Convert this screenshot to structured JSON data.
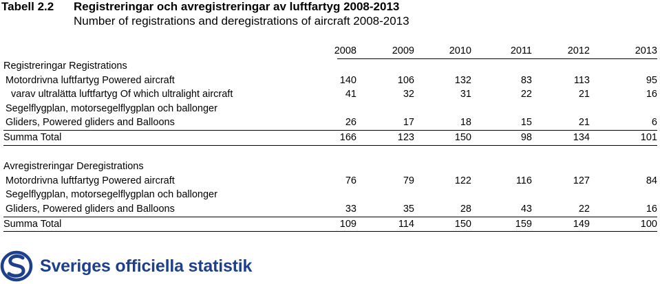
{
  "title": {
    "label": "Tabell 2.2",
    "text": "Registreringar och avregistreringar av luftfartyg 2008-2013"
  },
  "subtitle": "Number of registrations and deregistrations of aircraft 2008-2013",
  "years": [
    "2008",
    "2009",
    "2010",
    "2011",
    "2012",
    "2013"
  ],
  "rows": [
    {
      "label": "Registreringar Registrations",
      "values": []
    },
    {
      "label": "Motordrivna luftfartyg Powered aircraft",
      "values": [
        "140",
        "106",
        "132",
        "83",
        "113",
        "95"
      ]
    },
    {
      "label": "varav ultralätta luftfartyg Of which ultralight aircraft",
      "values": [
        "41",
        "32",
        "31",
        "22",
        "21",
        "16"
      ]
    },
    {
      "label": "Segelflygplan, motorsegelflygplan och ballonger",
      "values": []
    },
    {
      "label": "Gliders, Powered gliders and Balloons",
      "values": [
        "26",
        "17",
        "18",
        "15",
        "21",
        "6"
      ]
    },
    {
      "label": "Summa Total",
      "values": [
        "166",
        "123",
        "150",
        "98",
        "134",
        "101"
      ]
    },
    {
      "label": "",
      "values": []
    },
    {
      "label": "Avregistreringar Deregistrations",
      "values": []
    },
    {
      "label": "Motordrivna luftfartyg Powered aircraft",
      "values": [
        "76",
        "79",
        "122",
        "116",
        "127",
        "84"
      ]
    },
    {
      "label": "Segelflygplan, motorsegelflygplan och ballonger",
      "values": []
    },
    {
      "label": "Gliders, Powered gliders and Balloons",
      "values": [
        "33",
        "35",
        "28",
        "43",
        "22",
        "16"
      ]
    },
    {
      "label": "Summa Total",
      "values": [
        "109",
        "114",
        "150",
        "159",
        "149",
        "100"
      ]
    }
  ],
  "logo": {
    "text": "Sveriges officiella statistik",
    "icon": "sos-logo-icon",
    "color": "#1d3f8c"
  }
}
